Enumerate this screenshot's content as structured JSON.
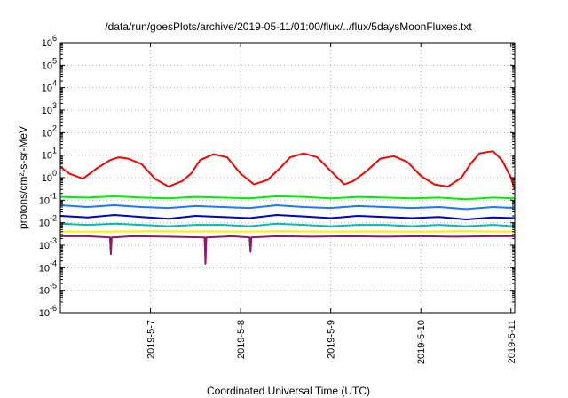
{
  "chart_data": {
    "type": "line",
    "title": "/data/run/goesPlots/archive/2019-05-11/01:00/flux/../flux/5daysMoonFluxes.txt",
    "xlabel": "Coordinated Universal Time (UTC)",
    "ylabel": "protons/cm²-s-sr-MeV",
    "y_scale": "log",
    "ylim": [
      1e-06,
      1000000.0
    ],
    "x_range_days": [
      "2019-05-06 00:00",
      "2019-05-11 01:00"
    ],
    "x_ticks": [
      "2019-5-7",
      "2019-5-8",
      "2019-5-9",
      "2019-5-10",
      "2019-5-11"
    ],
    "y_ticks": [
      {
        "base": "10",
        "exp": "6"
      },
      {
        "base": "10",
        "exp": "5"
      },
      {
        "base": "10",
        "exp": "4"
      },
      {
        "base": "10",
        "exp": "3"
      },
      {
        "base": "10",
        "exp": "2"
      },
      {
        "base": "10",
        "exp": "1"
      },
      {
        "base": "10",
        "exp": "0"
      },
      {
        "base": "10",
        "exp": "-1"
      },
      {
        "base": "10",
        "exp": "-2"
      },
      {
        "base": "10",
        "exp": "-3"
      },
      {
        "base": "10",
        "exp": "-4"
      },
      {
        "base": "10",
        "exp": "-5"
      },
      {
        "base": "10",
        "exp": "-6"
      }
    ],
    "grid": true,
    "series": [
      {
        "color": "#ff0000",
        "days": [
          0.0,
          0.1,
          0.25,
          0.4,
          0.55,
          0.65,
          0.75,
          0.9,
          1.05,
          1.2,
          1.35,
          1.45,
          1.55,
          1.7,
          1.85,
          2.0,
          2.15,
          2.3,
          2.45,
          2.55,
          2.7,
          2.85,
          3.0,
          3.15,
          3.25,
          3.4,
          3.55,
          3.7,
          3.85,
          4.0,
          4.15,
          4.3,
          4.45,
          4.55,
          4.65,
          4.8,
          4.9,
          5.0,
          5.04
        ],
        "values": [
          3,
          1.5,
          0.9,
          2.5,
          6,
          8,
          7,
          4,
          0.9,
          0.4,
          0.7,
          1.5,
          6,
          11,
          8,
          1.5,
          0.5,
          0.8,
          3,
          8,
          12,
          8,
          2,
          0.5,
          0.7,
          2,
          7,
          9,
          5,
          1.2,
          0.5,
          0.4,
          1,
          4,
          12,
          15,
          6,
          1,
          0.3
        ]
      },
      {
        "color": "#00ee00",
        "days": [
          0.0,
          0.3,
          0.6,
          0.9,
          1.2,
          1.5,
          1.8,
          2.1,
          2.4,
          2.7,
          3.0,
          3.3,
          3.6,
          3.9,
          4.2,
          4.5,
          4.8,
          5.04
        ],
        "values": [
          0.14,
          0.13,
          0.15,
          0.13,
          0.12,
          0.14,
          0.13,
          0.12,
          0.15,
          0.14,
          0.12,
          0.14,
          0.13,
          0.12,
          0.13,
          0.11,
          0.13,
          0.12
        ]
      },
      {
        "color": "#1e78ff",
        "days": [
          0.0,
          0.3,
          0.6,
          0.9,
          1.2,
          1.5,
          1.8,
          2.1,
          2.4,
          2.7,
          3.0,
          3.3,
          3.6,
          3.9,
          4.2,
          4.5,
          4.8,
          5.04
        ],
        "values": [
          0.06,
          0.05,
          0.06,
          0.05,
          0.045,
          0.055,
          0.05,
          0.045,
          0.06,
          0.05,
          0.045,
          0.055,
          0.05,
          0.045,
          0.05,
          0.04,
          0.05,
          0.045
        ]
      },
      {
        "color": "#0000cc",
        "days": [
          0.0,
          0.3,
          0.6,
          0.9,
          1.2,
          1.5,
          1.8,
          2.1,
          2.4,
          2.7,
          3.0,
          3.3,
          3.6,
          3.9,
          4.2,
          4.5,
          4.8,
          5.04
        ],
        "values": [
          0.02,
          0.017,
          0.022,
          0.018,
          0.015,
          0.02,
          0.018,
          0.016,
          0.022,
          0.019,
          0.016,
          0.02,
          0.018,
          0.016,
          0.018,
          0.014,
          0.017,
          0.016
        ]
      },
      {
        "color": "#00bbbb",
        "days": [
          0.0,
          0.3,
          0.6,
          0.9,
          1.2,
          1.5,
          1.8,
          2.1,
          2.4,
          2.7,
          3.0,
          3.3,
          3.6,
          3.9,
          4.2,
          4.5,
          4.8,
          5.04
        ],
        "values": [
          0.009,
          0.008,
          0.009,
          0.008,
          0.007,
          0.008,
          0.008,
          0.007,
          0.009,
          0.008,
          0.007,
          0.008,
          0.008,
          0.007,
          0.008,
          0.007,
          0.008,
          0.007
        ]
      },
      {
        "color": "#ffee00",
        "days": [
          0.0,
          0.5,
          1.0,
          1.5,
          2.0,
          2.5,
          3.0,
          3.5,
          4.0,
          4.5,
          5.04
        ],
        "values": [
          0.004,
          0.004,
          0.0042,
          0.0041,
          0.004,
          0.0042,
          0.004,
          0.0041,
          0.004,
          0.0042,
          0.004
        ]
      },
      {
        "color": "#8b1a6b",
        "days": [
          0.0,
          0.3,
          0.55,
          0.56,
          0.57,
          0.8,
          1.2,
          1.6,
          1.61,
          1.62,
          1.9,
          2.1,
          2.11,
          2.12,
          2.4,
          2.8,
          3.2,
          3.6,
          4.0,
          4.4,
          4.8,
          5.04
        ],
        "values": [
          0.0025,
          0.0025,
          0.0022,
          0.0004,
          0.0022,
          0.0025,
          0.0024,
          0.0022,
          0.00015,
          0.0022,
          0.0025,
          0.0022,
          0.0005,
          0.0022,
          0.0025,
          0.0024,
          0.0025,
          0.0024,
          0.0025,
          0.0024,
          0.0025,
          0.0025
        ]
      }
    ]
  }
}
